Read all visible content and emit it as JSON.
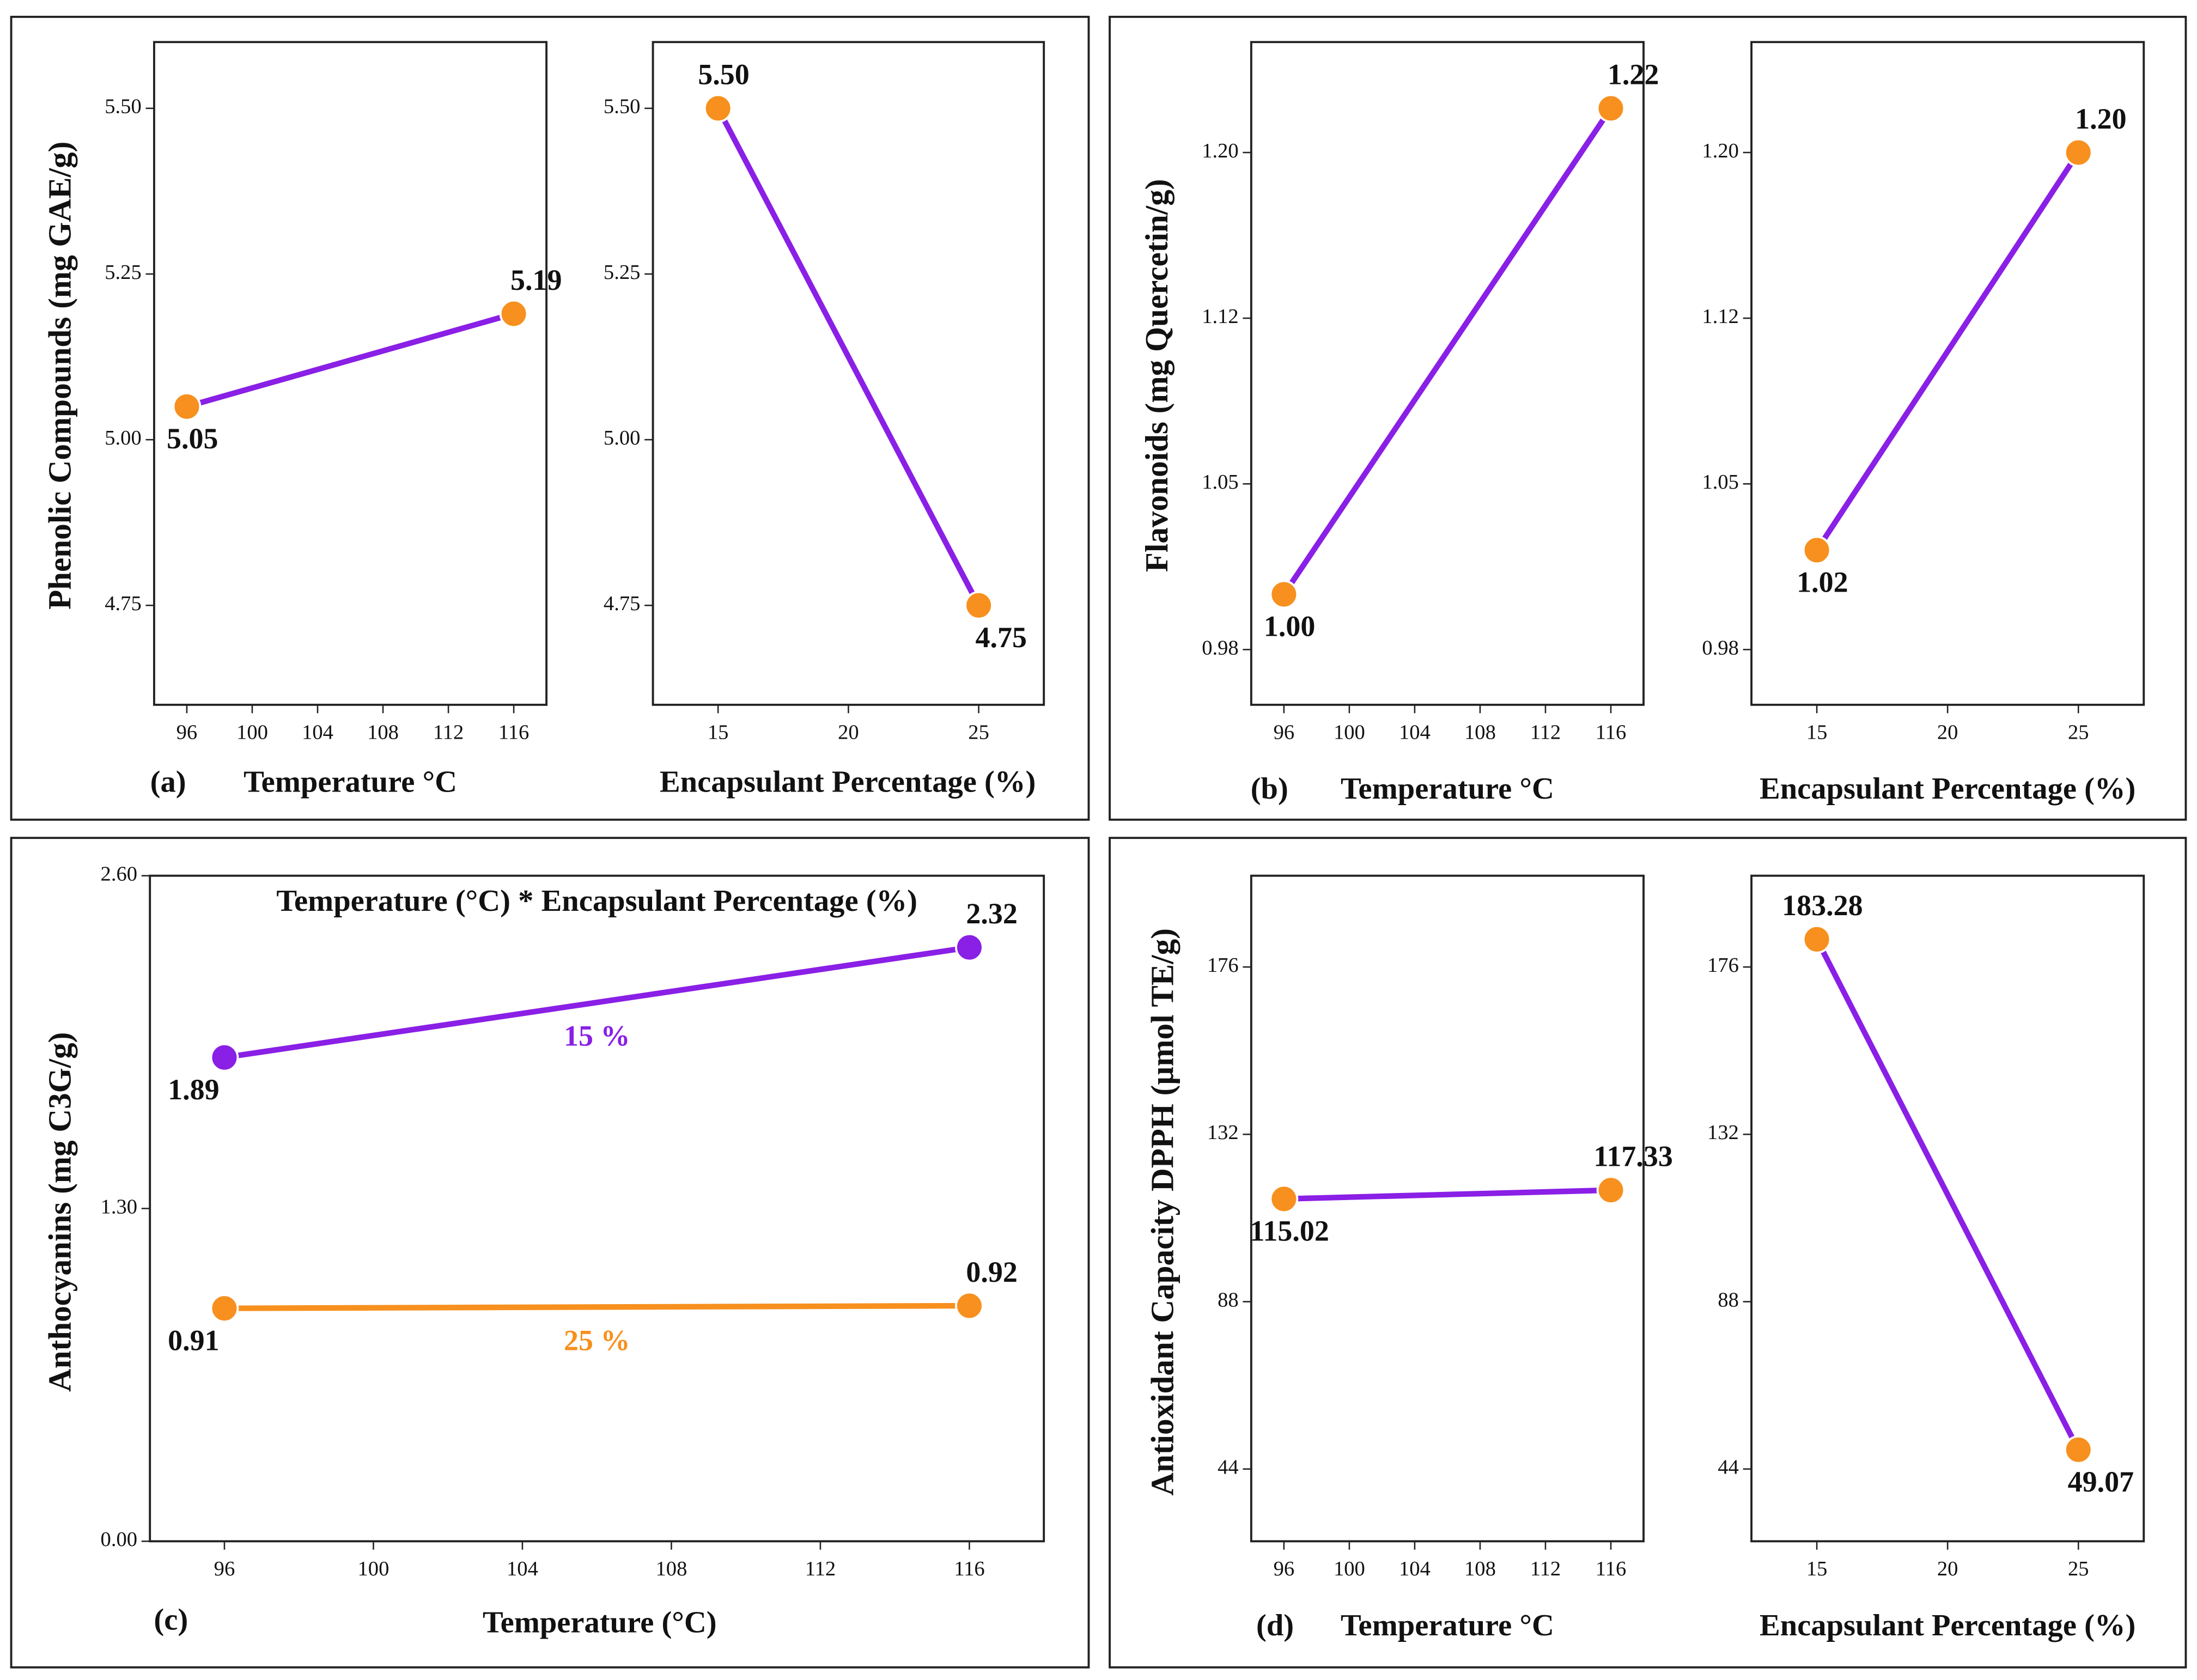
{
  "chart_data": [
    {
      "type": "line",
      "panel_label": "(a)",
      "ylabel": "Phenolic Compounds (mg GAE/g)",
      "xlabel": "Temperature °C",
      "x": [
        96,
        116
      ],
      "xlim": [
        94,
        118
      ],
      "xticks": [
        96,
        100,
        104,
        108,
        112,
        116
      ],
      "ylim": [
        4.6,
        5.6
      ],
      "yticks": [
        4.75,
        {
          "value": 5,
          "label": "5.00"
        },
        5.25,
        {
          "value": 5.5,
          "label": "5.50"
        }
      ],
      "series": [
        {
          "color": "#8a1fe6",
          "marker_color": "#f7901e",
          "values": [
            5.05,
            5.19
          ],
          "value_labels": [
            "5.05",
            "5.19"
          ]
        }
      ]
    },
    {
      "type": "line",
      "xlabel": "Encapsulant Percentage (%)",
      "x": [
        15,
        25
      ],
      "xlim": [
        12.5,
        27.5
      ],
      "xticks": [
        15,
        20,
        25
      ],
      "ylim": [
        4.6,
        5.6
      ],
      "yticks": [
        4.75,
        {
          "value": 5,
          "label": "5.00"
        },
        5.25,
        {
          "value": 5.5,
          "label": "5.50"
        }
      ],
      "series": [
        {
          "color": "#8a1fe6",
          "marker_color": "#f7901e",
          "values": [
            5.5,
            4.75
          ],
          "value_labels": [
            "5.50",
            "4.75"
          ]
        }
      ]
    },
    {
      "type": "line",
      "panel_label": "(b)",
      "ylabel": "Flavonoids (mg Quercetin/g)",
      "xlabel": "Temperature °C",
      "x": [
        96,
        116
      ],
      "xlim": [
        94,
        118
      ],
      "xticks": [
        96,
        100,
        104,
        108,
        112,
        116
      ],
      "ylim": [
        0.95,
        1.25
      ],
      "yticks": [
        {
          "value": 0.975,
          "label": "0.98"
        },
        1.05,
        {
          "value": 1.125,
          "label": "1.12"
        },
        {
          "value": 1.2,
          "label": "1.20"
        }
      ],
      "series": [
        {
          "color": "#8a1fe6",
          "marker_color": "#f7901e",
          "values": [
            1.0,
            1.22
          ],
          "value_labels": [
            "1.00",
            "1.22"
          ]
        }
      ]
    },
    {
      "type": "line",
      "xlabel": "Encapsulant Percentage (%)",
      "x": [
        15,
        25
      ],
      "xlim": [
        12.5,
        27.5
      ],
      "xticks": [
        15,
        20,
        25
      ],
      "ylim": [
        0.95,
        1.25
      ],
      "yticks": [
        {
          "value": 0.975,
          "label": "0.98"
        },
        1.05,
        {
          "value": 1.125,
          "label": "1.12"
        },
        {
          "value": 1.2,
          "label": "1.20"
        }
      ],
      "series": [
        {
          "color": "#8a1fe6",
          "marker_color": "#f7901e",
          "values": [
            1.02,
            1.2
          ],
          "value_labels": [
            "1.02",
            "1.20"
          ]
        }
      ]
    },
    {
      "type": "line",
      "panel_label": "(c)",
      "title": "Temperature (°C) * Encapsulant Percentage (%)",
      "ylabel": "Anthocyanins (mg C3G/g)",
      "xlabel": "Temperature (°C)",
      "x": [
        96,
        116
      ],
      "xlim": [
        94,
        118
      ],
      "xticks": [
        96,
        100,
        104,
        108,
        112,
        116
      ],
      "ylim": [
        0,
        2.6
      ],
      "yticks": [
        {
          "value": 0,
          "label": "0.00"
        },
        {
          "value": 1.3,
          "label": "1.30"
        },
        {
          "value": 2.6,
          "label": "2.60"
        }
      ],
      "series": [
        {
          "name": "15 %",
          "color": "#8a1fe6",
          "marker_color": "#8a1fe6",
          "values": [
            1.89,
            2.32
          ],
          "value_labels": [
            "1.89",
            "2.32"
          ]
        },
        {
          "name": "25 %",
          "color": "#f7901e",
          "marker_color": "#f7901e",
          "values": [
            0.91,
            0.92
          ],
          "value_labels": [
            "0.91",
            "0.92"
          ]
        }
      ]
    },
    {
      "type": "line",
      "panel_label": "(d)",
      "ylabel": "Antioxidant Capacity DPPH (µmol TE/g)",
      "xlabel": "Temperature °C",
      "x": [
        96,
        116
      ],
      "xlim": [
        94,
        118
      ],
      "xticks": [
        96,
        100,
        104,
        108,
        112,
        116
      ],
      "ylim": [
        25,
        200
      ],
      "yticks": [
        44,
        88,
        132,
        176
      ],
      "series": [
        {
          "color": "#8a1fe6",
          "marker_color": "#f7901e",
          "values": [
            115.02,
            117.33
          ]
        }
      ]
    },
    {
      "type": "line",
      "xlabel": "Encapsulant Percentage (%)",
      "x": [
        15,
        25
      ],
      "xlim": [
        12.5,
        27.5
      ],
      "xticks": [
        15,
        20,
        25
      ],
      "ylim": [
        25,
        200
      ],
      "yticks": [
        44,
        88,
        132,
        176
      ],
      "series": [
        {
          "color": "#8a1fe6",
          "marker_color": "#f7901e",
          "values": [
            183.28,
            49.07
          ]
        }
      ]
    }
  ]
}
